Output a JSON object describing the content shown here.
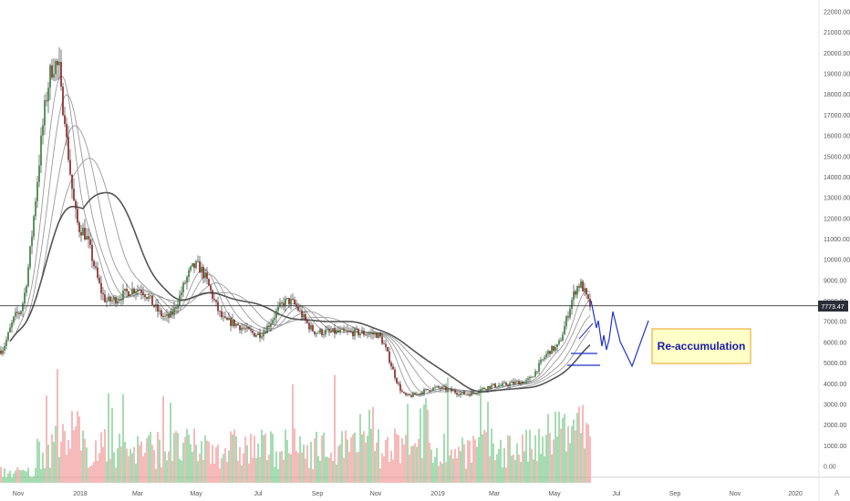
{
  "chart_data": {
    "type": "candlestick",
    "price_axis": {
      "ticks": [
        "22000.00",
        "21000.00",
        "20000.00",
        "19000.00",
        "18000.00",
        "17000.00",
        "16000.00",
        "15000.00",
        "14000.00",
        "13000.00",
        "12000.00",
        "11000.00",
        "10000.00",
        "9000.00",
        "8000.00",
        "7000.00",
        "6000.00",
        "5000.00",
        "4000.00",
        "3000.00",
        "2000.00",
        "1000.00",
        "0.00"
      ],
      "range": [
        0,
        22000
      ]
    },
    "time_axis": {
      "labels": [
        "Nov",
        "2018",
        "Mar",
        "May",
        "Jul",
        "Sep",
        "Nov",
        "2019",
        "Mar",
        "May",
        "Jul",
        "Sep",
        "Nov",
        "2020"
      ]
    },
    "current_price": {
      "label": "7773.47",
      "value": 7773.47
    },
    "price_path": [
      [
        "Oct 2017",
        5600
      ],
      [
        "Nov 2017",
        7400
      ],
      [
        "Dec 2017",
        19500
      ],
      [
        "Jan 2018",
        11500
      ],
      [
        "Feb 2018",
        8000
      ],
      [
        "Mar 2018",
        8600
      ],
      [
        "Apr 2018",
        7200
      ],
      [
        "May 2018",
        9700
      ],
      [
        "Jun 2018",
        7000
      ],
      [
        "Jul 2018",
        6400
      ],
      [
        "Aug 2018",
        8000
      ],
      [
        "Sep 2018",
        6500
      ],
      [
        "Oct 2018",
        6500
      ],
      [
        "Nov 2018",
        6400
      ],
      [
        "Dec 2018",
        3400
      ],
      [
        "Jan 2019",
        3800
      ],
      [
        "Feb 2019",
        3500
      ],
      [
        "Mar 2019",
        3900
      ],
      [
        "Apr 2019",
        4100
      ],
      [
        "May 2019",
        5700
      ],
      [
        "Jun 2019",
        8800
      ],
      [
        "Jun 2019 (last)",
        7773.47
      ]
    ],
    "volume_ticks_k": [
      0,
      1000,
      2000,
      3000,
      4000
    ],
    "annotation": {
      "text": "Re-accumulation",
      "text_color": "#1a1aa8",
      "fill": "#ffffc8",
      "border": "#e8a020"
    },
    "colors": {
      "up": "#26a69a",
      "down": "#ef5350",
      "ma": "#888888",
      "projection": "#2233cc"
    },
    "watermark": "A"
  }
}
